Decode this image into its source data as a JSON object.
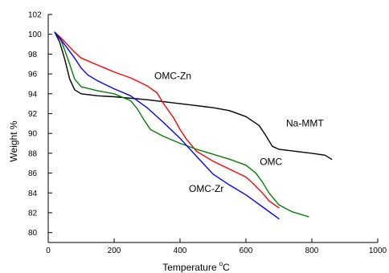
{
  "chart_data": {
    "type": "line",
    "xlabel": "Temperature",
    "xlabel_unit_sup": "o",
    "xlabel_unit": "C",
    "ylabel": "Weight %",
    "xlim": [
      0,
      1000
    ],
    "ylim": [
      79,
      102
    ],
    "x_ticks": [
      0,
      200,
      400,
      600,
      800,
      1000
    ],
    "y_ticks": [
      80,
      82,
      84,
      86,
      88,
      90,
      92,
      94,
      96,
      98,
      100,
      102
    ],
    "grid": false,
    "legend": "none",
    "series": [
      {
        "name": "Na-MMT",
        "color": "#000000",
        "label_at": [
          215,
          90.7
        ],
        "points": [
          [
            20,
            100.2
          ],
          [
            35,
            99.2
          ],
          [
            50,
            97.5
          ],
          [
            65,
            95.5
          ],
          [
            80,
            94.4
          ],
          [
            100,
            94.0
          ],
          [
            150,
            93.8
          ],
          [
            200,
            93.7
          ],
          [
            300,
            93.4
          ],
          [
            400,
            93.0
          ],
          [
            450,
            92.8
          ],
          [
            500,
            92.6
          ],
          [
            550,
            92.3
          ],
          [
            600,
            91.7
          ],
          [
            640,
            90.8
          ],
          [
            660,
            89.8
          ],
          [
            680,
            88.7
          ],
          [
            700,
            88.4
          ],
          [
            750,
            88.2
          ],
          [
            800,
            88.0
          ],
          [
            840,
            87.8
          ],
          [
            860,
            87.4
          ]
        ]
      },
      {
        "name": "OMC-Zn",
        "color": "#ff0000",
        "label_at": [
          200,
          95.5
        ],
        "points": [
          [
            20,
            100.2
          ],
          [
            40,
            99.6
          ],
          [
            60,
            98.9
          ],
          [
            80,
            98.2
          ],
          [
            100,
            97.6
          ],
          [
            150,
            96.9
          ],
          [
            200,
            96.2
          ],
          [
            250,
            95.6
          ],
          [
            300,
            94.8
          ],
          [
            330,
            94.1
          ],
          [
            350,
            93.0
          ],
          [
            380,
            91.6
          ],
          [
            400,
            90.4
          ],
          [
            420,
            89.4
          ],
          [
            450,
            88.2
          ],
          [
            500,
            87.2
          ],
          [
            550,
            86.4
          ],
          [
            600,
            85.6
          ],
          [
            620,
            85.0
          ],
          [
            650,
            84.0
          ],
          [
            670,
            83.2
          ],
          [
            700,
            82.5
          ]
        ]
      },
      {
        "name": "OMC",
        "color": "#008000",
        "label_at": [
          280,
          86.8
        ],
        "points": [
          [
            20,
            100.2
          ],
          [
            40,
            99.3
          ],
          [
            60,
            97.5
          ],
          [
            80,
            95.5
          ],
          [
            100,
            94.7
          ],
          [
            150,
            94.3
          ],
          [
            200,
            94.0
          ],
          [
            250,
            93.3
          ],
          [
            270,
            92.5
          ],
          [
            290,
            91.4
          ],
          [
            310,
            90.4
          ],
          [
            350,
            89.7
          ],
          [
            400,
            89.0
          ],
          [
            450,
            88.4
          ],
          [
            500,
            87.9
          ],
          [
            550,
            87.4
          ],
          [
            600,
            86.8
          ],
          [
            630,
            86.0
          ],
          [
            650,
            85.1
          ],
          [
            670,
            84.0
          ],
          [
            700,
            82.8
          ],
          [
            740,
            82.1
          ],
          [
            770,
            81.8
          ],
          [
            790,
            81.6
          ]
        ]
      },
      {
        "name": "OMC-Zr",
        "color": "#0000ff",
        "label_at": [
          265,
          84.1
        ],
        "points": [
          [
            20,
            100.2
          ],
          [
            40,
            99.4
          ],
          [
            60,
            98.5
          ],
          [
            80,
            97.6
          ],
          [
            100,
            96.6
          ],
          [
            120,
            95.9
          ],
          [
            150,
            95.3
          ],
          [
            200,
            94.5
          ],
          [
            250,
            93.8
          ],
          [
            300,
            92.6
          ],
          [
            350,
            91.1
          ],
          [
            400,
            89.5
          ],
          [
            450,
            87.7
          ],
          [
            500,
            85.9
          ],
          [
            550,
            84.8
          ],
          [
            600,
            83.8
          ],
          [
            650,
            82.6
          ],
          [
            700,
            81.4
          ]
        ]
      }
    ]
  }
}
